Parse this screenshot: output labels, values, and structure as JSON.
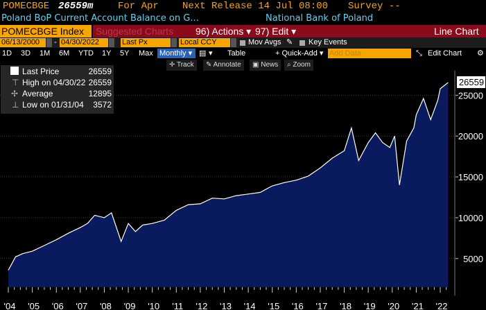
{
  "header": {
    "ticker_short": "POMECBGE",
    "last_value": "26559m",
    "period": "For Apr",
    "next_release": "Next Release 14 Jul 08:00",
    "survey": "Survey --",
    "description": "Poland BoP Current Account Balance on G...",
    "source": "National Bank of Poland"
  },
  "toolbar": {
    "security": "POMECBGE Index",
    "suggested": "Suggested Charts",
    "actions": "96) Actions ▾",
    "edit": "97) Edit ▾",
    "view": "Line Chart"
  },
  "range_bar": {
    "start_date": "06/13/2000",
    "end_date": "04/30/2022",
    "field": "Last Px",
    "currency": "Local CCY",
    "mov_avgs": "Mov Avgs",
    "key_events": "Key Events",
    "periods": [
      "1D",
      "3D",
      "1M",
      "6M",
      "YTD",
      "1Y",
      "5Y",
      "Max"
    ],
    "frequency": "Monthly ▾",
    "table": "Table",
    "quick_add": "+ Quick-Add ▾",
    "add_data": "Add Data",
    "edit_chart": "Edit Chart"
  },
  "tools": [
    "Track",
    "Annotate",
    "News",
    "Zoom"
  ],
  "legend": {
    "last_price_label": "Last Price",
    "last_price_value": "26559",
    "high_label": "High on 04/30/22",
    "high_value": "26559",
    "avg_label": "Average",
    "avg_value": "12895",
    "low_label": "Low on 01/31/04",
    "low_value": "3572"
  },
  "colors": {
    "amber": "#f7a600",
    "area_fill": "#0a1a5e",
    "line": "#ffffff",
    "dark_red": "#8b0a1c"
  },
  "chart_data": {
    "type": "area",
    "last_label": "26559",
    "ylim": [
      1500,
      28000
    ],
    "y_ticks": [
      5000,
      10000,
      15000,
      20000,
      25000
    ],
    "x_tick_labels": [
      "'04",
      "'05",
      "'06",
      "'07",
      "'08",
      "'09",
      "'10",
      "'11",
      "'12",
      "'13",
      "'14",
      "'15",
      "'16",
      "'17",
      "'18",
      "'19",
      "'20",
      "'21",
      "'22"
    ],
    "x_range": [
      2004.0,
      2022.33
    ],
    "series": [
      {
        "x": [
          2004.0,
          2004.3,
          2004.6,
          2005.0,
          2005.5,
          2006.0,
          2006.5,
          2007.0,
          2007.3,
          2007.6,
          2008.0,
          2008.3,
          2008.7,
          2009.0,
          2009.3,
          2009.6,
          2010.0,
          2010.5,
          2011.0,
          2011.5,
          2012.0,
          2012.5,
          2013.0,
          2013.5,
          2014.0,
          2014.5,
          2015.0,
          2015.5,
          2016.0,
          2016.5,
          2017.0,
          2017.5,
          2018.0,
          2018.3,
          2018.6,
          2019.0,
          2019.3,
          2019.6,
          2019.9,
          2020.1,
          2020.3,
          2020.6,
          2020.9,
          2021.0,
          2021.3,
          2021.6,
          2021.9,
          2022.0,
          2022.33
        ],
        "y": [
          3572,
          5200,
          5600,
          5900,
          6600,
          7300,
          8100,
          8800,
          9300,
          10300,
          10000,
          10600,
          7100,
          9300,
          8300,
          9100,
          9300,
          9700,
          10900,
          11600,
          11700,
          12400,
          12300,
          12700,
          12900,
          13100,
          13900,
          14300,
          14600,
          15100,
          16100,
          17300,
          18200,
          21000,
          17000,
          19200,
          20400,
          19200,
          18600,
          20000,
          14000,
          19400,
          21000,
          22600,
          24600,
          22000,
          24400,
          25800,
          26559
        ]
      }
    ]
  }
}
